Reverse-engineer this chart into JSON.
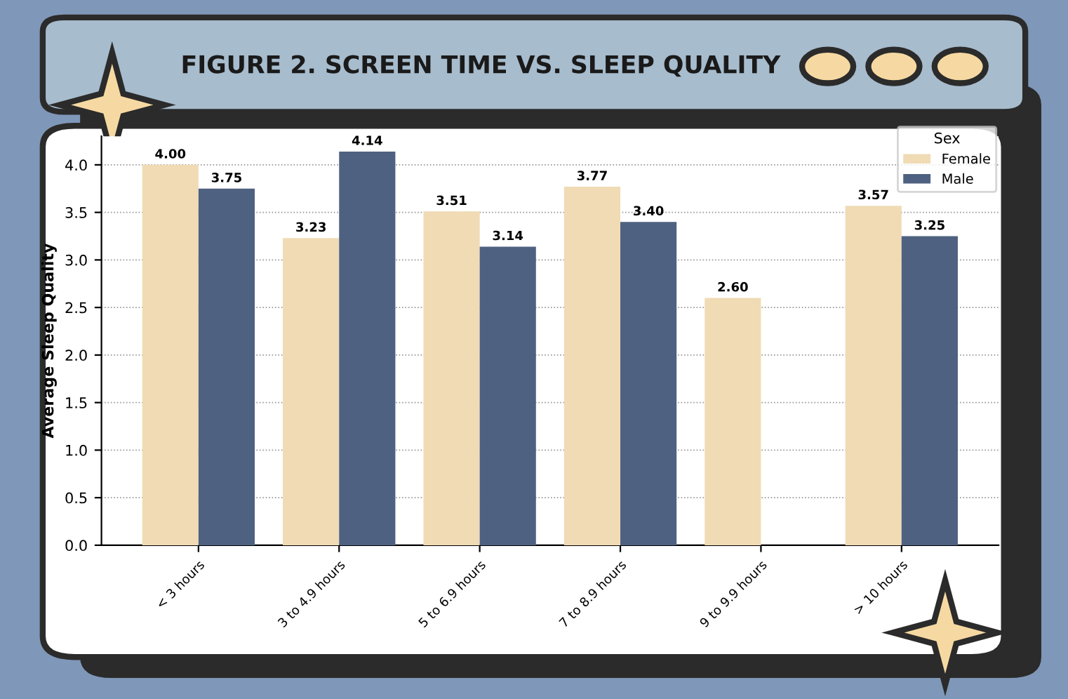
{
  "chart_data": {
    "type": "bar",
    "title": "FIGURE 2. SCREEN TIME VS. SLEEP QUALITY",
    "ylabel": "Average Sleep Quality",
    "legend_title": "Sex",
    "legend": "top right",
    "categories": [
      "< 3 hours",
      "3 to 4.9 hours",
      "5 to 6.9 hours",
      "7 to 8.9 hours",
      "9 to 9.9 hours",
      "> 10 hours"
    ],
    "series": [
      {
        "name": "Female",
        "color": "#f0dbb5",
        "values": [
          4.0,
          3.23,
          3.51,
          3.77,
          2.6,
          3.57
        ],
        "value_labels": [
          "4.00",
          "3.23",
          "3.51",
          "3.77",
          "2.60",
          "3.57"
        ]
      },
      {
        "name": "Male",
        "color": "#4e6180",
        "values": [
          3.75,
          4.14,
          3.14,
          3.4,
          null,
          3.25
        ],
        "value_labels": [
          "3.75",
          "4.14",
          "3.14",
          "3.40",
          null,
          "3.25"
        ]
      }
    ],
    "ylim": [
      0,
      4.3
    ],
    "yticks": [
      "0.0",
      "0.5",
      "1.0",
      "1.5",
      "2.0",
      "2.5",
      "3.0",
      "3.5",
      "4.0"
    ],
    "grid": "y"
  }
}
